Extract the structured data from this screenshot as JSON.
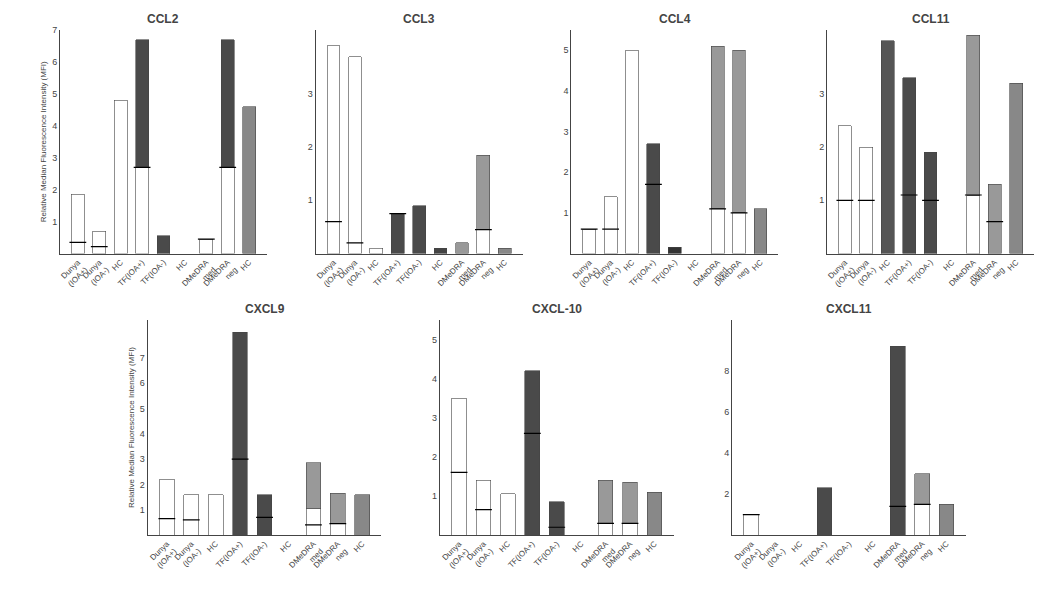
{
  "chart_data": [
    {
      "type": "bar",
      "title": "CCL2",
      "ylabel": "Relative Median Fluorescence Intensity (MFI)",
      "categories": [
        "Dunya\n(IOA+)",
        "Dunya\n(IOA-)",
        "HC",
        "TF(IOA+)",
        "TF(IOA-)",
        "HC",
        "DMeDRA\nmed",
        "DMeDRA\nneg",
        "HC"
      ],
      "stacked": true,
      "grid": false,
      "ylim": [
        0,
        7.0
      ],
      "yticks": [
        1,
        2,
        3,
        4,
        5,
        6,
        7
      ],
      "series": [
        {
          "type": "bar",
          "values": [
            1.85,
            0.7,
            4.8,
            2.7,
            null,
            null,
            0.45,
            2.7,
            4.6
          ],
          "colors": [
            "white",
            "white",
            "white",
            "white",
            null,
            null,
            "white",
            "white",
            "#888888"
          ]
        },
        {
          "type": "bar",
          "values": [
            null,
            null,
            null,
            4.0,
            0.55,
            null,
            null,
            4.0,
            null
          ],
          "colors": [
            null,
            null,
            null,
            "#4a4a4a",
            "#4a4a4a",
            null,
            null,
            "#4a4a4a",
            null
          ]
        },
        {
          "type": "scatter",
          "marker": "line-ew",
          "color": "black",
          "values": [
            0.35,
            0.22,
            null,
            2.7,
            null,
            null,
            0.45,
            2.7,
            null
          ]
        }
      ]
    },
    {
      "type": "bar",
      "title": "CCL3",
      "categories": [
        "Dunya\n(IOA+)",
        "Dunya\n(IOA-)",
        "HC",
        "TF(IOA+)",
        "TF(IOA-)",
        "HC",
        "DMeDRA\nmed",
        "DMeDRA\nneg",
        "HC"
      ],
      "stacked": true,
      "grid": false,
      "ylim": [
        0,
        4.2
      ],
      "yticks": [
        1,
        2,
        3
      ],
      "series": [
        {
          "type": "bar",
          "values": [
            3.9,
            3.7,
            0.1,
            0.75,
            0.9,
            0.1,
            0.2,
            0.45,
            0.1
          ],
          "colors": [
            "white",
            "white",
            "white",
            "#4a4a4a",
            "#4a4a4a",
            "#444444",
            "#999999",
            "white",
            "#888888"
          ]
        },
        {
          "type": "bar",
          "values": [
            null,
            null,
            null,
            null,
            null,
            null,
            null,
            1.4,
            null
          ],
          "colors": [
            null,
            null,
            null,
            null,
            null,
            null,
            null,
            "#999999",
            null
          ]
        },
        {
          "type": "scatter",
          "marker": "line-ew",
          "color": "black",
          "values": [
            0.6,
            0.2,
            null,
            0.75,
            null,
            null,
            null,
            0.45,
            null
          ]
        }
      ]
    },
    {
      "type": "bar",
      "title": "CCL4",
      "categories": [
        "Dunya\n(IOA+)",
        "Dunya\n(IOA-)",
        "HC",
        "TF(IOA+)",
        "TF(IOA-)",
        "HC",
        "DMeDRA\nmed",
        "DMeDRA\nneg",
        "HC"
      ],
      "stacked": true,
      "grid": false,
      "ylim": [
        0,
        5.5
      ],
      "yticks": [
        1,
        2,
        3,
        4,
        5
      ],
      "series": [
        {
          "type": "bar",
          "values": [
            0.6,
            1.4,
            5.0,
            2.7,
            0.15,
            null,
            1.1,
            1.0,
            1.1
          ],
          "colors": [
            "white",
            "white",
            "white",
            "#4a4a4a",
            "#333333",
            null,
            "white",
            "white",
            "#888888"
          ]
        },
        {
          "type": "bar",
          "values": [
            null,
            null,
            null,
            null,
            null,
            null,
            4.0,
            4.0,
            null
          ],
          "colors": [
            null,
            null,
            null,
            null,
            null,
            null,
            "#999999",
            "#999999",
            null
          ]
        },
        {
          "type": "scatter",
          "marker": "line-ew",
          "color": "black",
          "values": [
            0.6,
            0.6,
            null,
            1.7,
            null,
            null,
            1.1,
            1.0,
            null
          ]
        }
      ]
    },
    {
      "type": "bar",
      "title": "CCL11",
      "categories": [
        "Dunya\n(IOA+)",
        "Dunya\n(IOA-)",
        "HC",
        "TF(IOA+)",
        "TF(IOA-)",
        "HC",
        "DMeDRA\nmed",
        "DMeDRA\nneg",
        "HC"
      ],
      "stacked": true,
      "grid": false,
      "ylim": [
        0,
        4.2
      ],
      "yticks": [
        1,
        2,
        3
      ],
      "series": [
        {
          "type": "bar",
          "values": [
            2.4,
            2.0,
            4.0,
            3.3,
            1.9,
            null,
            1.1,
            1.3,
            3.2
          ],
          "colors": [
            "white",
            "white",
            "#555555",
            "#4a4a4a",
            "#4a4a4a",
            null,
            "white",
            "#999999",
            "#888888"
          ]
        },
        {
          "type": "bar",
          "values": [
            null,
            null,
            null,
            null,
            null,
            null,
            3.0,
            null,
            null
          ],
          "colors": [
            null,
            null,
            null,
            null,
            null,
            null,
            "#999999",
            null,
            null
          ]
        },
        {
          "type": "scatter",
          "marker": "line-ew",
          "color": "black",
          "values": [
            1.0,
            1.0,
            null,
            1.1,
            1.0,
            null,
            1.1,
            0.6,
            null
          ]
        }
      ]
    },
    {
      "type": "bar",
      "title": "CXCL9",
      "ylabel": "Relative Median Fluorescence Intensity (MFI)",
      "categories": [
        "Dunya\n(IOA+)",
        "Dunya\n(IOA-)",
        "HC",
        "TF(IOA+)",
        "TF(IOA-)",
        "HC",
        "DMeDRA\nmed",
        "DMeDRA\nneg",
        "HC"
      ],
      "stacked": true,
      "grid": false,
      "ylim": [
        0,
        8.5
      ],
      "yticks": [
        1,
        2,
        3,
        4,
        5,
        6,
        7
      ],
      "series": [
        {
          "type": "bar",
          "values": [
            2.2,
            1.6,
            1.6,
            8.0,
            1.6,
            null,
            1.05,
            0.45,
            1.6
          ],
          "colors": [
            "white",
            "white",
            "white",
            "#4a4a4a",
            "#4a4a4a",
            null,
            "white",
            "white",
            "#888888"
          ]
        },
        {
          "type": "bar",
          "values": [
            null,
            null,
            null,
            null,
            null,
            null,
            1.8,
            1.2,
            null
          ],
          "colors": [
            null,
            null,
            null,
            null,
            null,
            null,
            "#999999",
            "#999999",
            null
          ]
        },
        {
          "type": "scatter",
          "marker": "line-ew",
          "color": "black",
          "values": [
            0.65,
            0.6,
            null,
            3.0,
            0.7,
            null,
            0.4,
            0.45,
            null
          ]
        }
      ]
    },
    {
      "type": "bar",
      "title": "CXCL-10",
      "categories": [
        "Dunya\n(IOA+)",
        "Dunya\n(IOA-)",
        "HC",
        "TF(IOA+)",
        "TF(IOA-)",
        "HC",
        "DMeDRA\nmed",
        "DMeDRA\nneg",
        "HC"
      ],
      "stacked": true,
      "grid": false,
      "ylim": [
        0,
        5.5
      ],
      "yticks": [
        1,
        2,
        3,
        4,
        5
      ],
      "series": [
        {
          "type": "bar",
          "values": [
            3.5,
            1.4,
            1.05,
            4.2,
            0.85,
            null,
            0.3,
            0.3,
            1.1
          ],
          "colors": [
            "white",
            "white",
            "white",
            "#4a4a4a",
            "#4a4a4a",
            null,
            "white",
            "white",
            "#888888"
          ]
        },
        {
          "type": "bar",
          "values": [
            null,
            null,
            null,
            null,
            null,
            null,
            1.1,
            1.05,
            null
          ],
          "colors": [
            null,
            null,
            null,
            null,
            null,
            null,
            "#999999",
            "#999999",
            null
          ]
        },
        {
          "type": "scatter",
          "marker": "line-ew",
          "color": "black",
          "values": [
            1.6,
            0.65,
            null,
            2.6,
            0.2,
            null,
            0.3,
            0.3,
            null
          ]
        }
      ]
    },
    {
      "type": "bar",
      "title": "CXCL11",
      "categories": [
        "Dunya\n(IOA+)",
        "Dunya\n(IOA-)",
        "HC",
        "TF(IOA+)",
        "TF(IOA-)",
        "HC",
        "DMeDRA\nmed",
        "DMeDRA\nneg",
        "HC"
      ],
      "stacked": true,
      "grid": false,
      "ylim": [
        0,
        10.5
      ],
      "yticks": [
        2,
        4,
        6,
        8
      ],
      "series": [
        {
          "type": "bar",
          "values": [
            1.0,
            null,
            null,
            2.3,
            null,
            null,
            9.2,
            1.5,
            1.5
          ],
          "colors": [
            "white",
            null,
            null,
            "#4a4a4a",
            null,
            null,
            "#4a4a4a",
            "white",
            "#888888"
          ]
        },
        {
          "type": "bar",
          "values": [
            null,
            null,
            null,
            null,
            null,
            null,
            null,
            1.5,
            null
          ],
          "colors": [
            null,
            null,
            null,
            null,
            null,
            null,
            null,
            "#999999",
            null
          ]
        },
        {
          "type": "scatter",
          "marker": "line-ew",
          "color": "black",
          "values": [
            1.0,
            null,
            null,
            null,
            null,
            null,
            1.4,
            1.5,
            null
          ]
        }
      ]
    }
  ]
}
